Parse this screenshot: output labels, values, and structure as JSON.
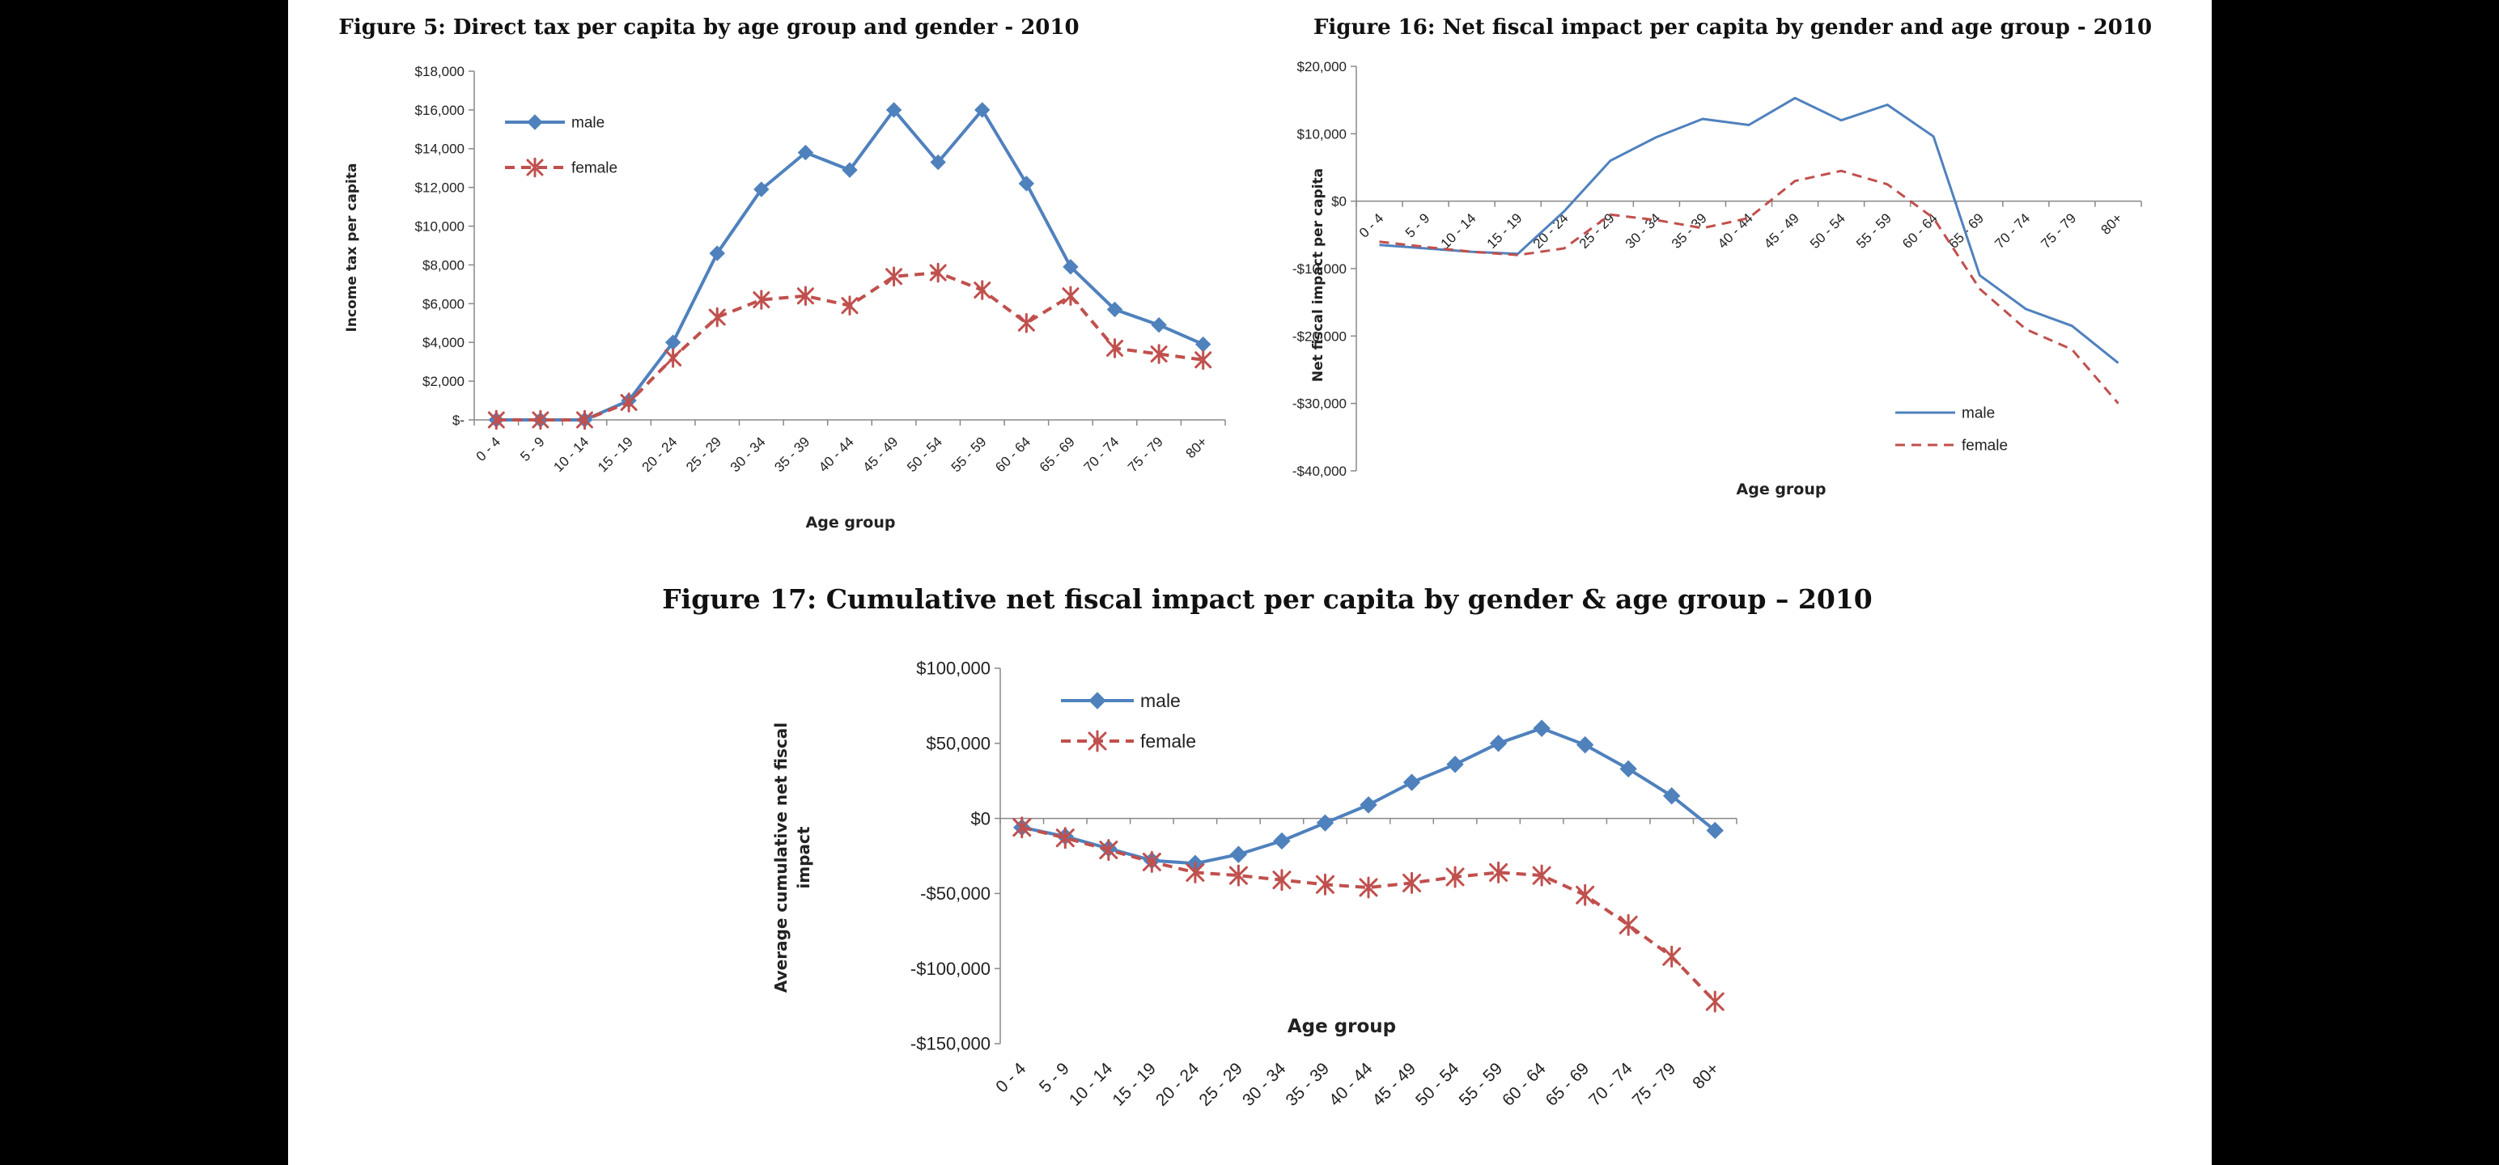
{
  "chart_data": [
    {
      "id": "fig5",
      "type": "line",
      "title": "Figure 5: Direct tax per capita by age group and gender - 2010",
      "xlabel": "Age group",
      "ylabel": "Income tax per capita",
      "categories": [
        "0 - 4",
        "5 - 9",
        "10 - 14",
        "15 - 19",
        "20 - 24",
        "25 - 29",
        "30 - 34",
        "35 - 39",
        "40 - 44",
        "45 - 49",
        "50 - 54",
        "55 - 59",
        "60 - 64",
        "65 - 69",
        "70 - 74",
        "75 - 79",
        "80+"
      ],
      "ylim": [
        0,
        18000
      ],
      "yticks": [
        0,
        2000,
        4000,
        6000,
        8000,
        10000,
        12000,
        14000,
        16000,
        18000
      ],
      "ytick_labels": [
        "$-",
        "$2,000",
        "$4,000",
        "$6,000",
        "$8,000",
        "$10,000",
        "$12,000",
        "$14,000",
        "$16,000",
        "$18,000"
      ],
      "grid": false,
      "legend_position": "top-left",
      "series": [
        {
          "name": "male",
          "color": "#4f81bd",
          "marker": "diamond",
          "values": [
            0,
            0,
            0,
            1000,
            4000,
            8600,
            11900,
            13800,
            12900,
            16000,
            13300,
            16000,
            12200,
            7900,
            5700,
            4900,
            3900
          ]
        },
        {
          "name": "female",
          "color": "#c0504d",
          "marker": "asterisk",
          "dash": true,
          "values": [
            0,
            0,
            0,
            900,
            3200,
            5300,
            6200,
            6400,
            5900,
            7400,
            7600,
            6700,
            5000,
            6400,
            3700,
            3400,
            3100
          ]
        }
      ]
    },
    {
      "id": "fig16",
      "type": "line",
      "title": "Figure 16: Net fiscal impact per capita by gender and age group - 2010",
      "xlabel": "Age group",
      "ylabel": "Net fiscal impact per capita",
      "categories": [
        "0 - 4",
        "5 - 9",
        "10 - 14",
        "15 - 19",
        "20 - 24",
        "25 - 29",
        "30 - 34",
        "35 - 39",
        "40 - 44",
        "45 - 49",
        "50 - 54",
        "55 - 59",
        "60 - 64",
        "65 - 69",
        "70 - 74",
        "75 - 79",
        "80+"
      ],
      "ylim": [
        -40000,
        20000
      ],
      "yticks": [
        -40000,
        -30000,
        -20000,
        -10000,
        0,
        10000,
        20000
      ],
      "ytick_labels": [
        "-$40,000",
        "-$30,000",
        "-$20,000",
        "-$10,000",
        "$0",
        "$10,000",
        "$20,000"
      ],
      "grid": false,
      "legend_position": "bottom-right",
      "series": [
        {
          "name": "male",
          "color": "#4f81bd",
          "dash": false,
          "values": [
            -6500,
            -7000,
            -7500,
            -7800,
            -1500,
            6000,
            9500,
            12200,
            11300,
            15300,
            12000,
            14300,
            9600,
            -11000,
            -16000,
            -18500,
            -24000
          ]
        },
        {
          "name": "female",
          "color": "#c0504d",
          "dash": true,
          "values": [
            -6000,
            -6800,
            -7500,
            -8000,
            -7000,
            -2000,
            -2800,
            -4000,
            -2500,
            3000,
            4500,
            2500,
            -2500,
            -13000,
            -19000,
            -22000,
            -30000
          ]
        }
      ]
    },
    {
      "id": "fig17",
      "type": "line",
      "title": "Figure 17: Cumulative net fiscal impact per capita by gender & age group – 2010",
      "xlabel": "Age group",
      "ylabel": "Average cumulative net fiscal impact",
      "categories": [
        "0 - 4",
        "5 - 9",
        "10 - 14",
        "15 - 19",
        "20 - 24",
        "25 - 29",
        "30 - 34",
        "35 - 39",
        "40 - 44",
        "45 - 49",
        "50 - 54",
        "55 - 59",
        "60 - 64",
        "65 - 69",
        "70 - 74",
        "75 - 79",
        "80+"
      ],
      "ylim": [
        -150000,
        100000
      ],
      "yticks": [
        -150000,
        -100000,
        -50000,
        0,
        50000,
        100000
      ],
      "ytick_labels": [
        "-$150,000",
        "-$100,000",
        "-$50,000",
        "$0",
        "$50,000",
        "$100,000"
      ],
      "grid": false,
      "legend_position": "top-left",
      "series": [
        {
          "name": "male",
          "color": "#4f81bd",
          "marker": "diamond",
          "values": [
            -6000,
            -12000,
            -20000,
            -28000,
            -30000,
            -24000,
            -15000,
            -3000,
            9000,
            24000,
            36000,
            50000,
            60000,
            49000,
            33000,
            15000,
            -8000
          ]
        },
        {
          "name": "female",
          "color": "#c0504d",
          "marker": "asterisk",
          "dash": true,
          "values": [
            -6000,
            -13000,
            -21000,
            -29000,
            -36000,
            -38000,
            -41000,
            -44000,
            -46000,
            -43000,
            -39000,
            -36000,
            -38000,
            -51000,
            -71000,
            -92000,
            -122000
          ]
        }
      ]
    }
  ]
}
